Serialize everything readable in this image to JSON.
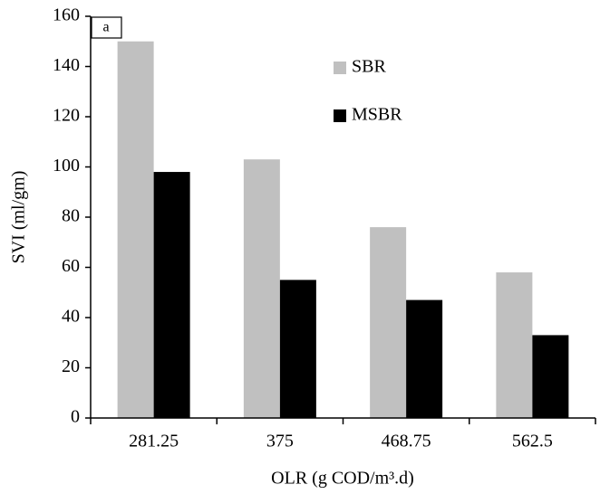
{
  "chart_data": {
    "type": "bar",
    "annotation": "a",
    "x_label": "OLR (g COD/m³.d)",
    "y_label": "SVI (ml/gm)",
    "categories": [
      "281.25",
      "375",
      "468.75",
      "562.5"
    ],
    "series": [
      {
        "name": "SBR",
        "color": "#c0c0c0",
        "values": [
          150,
          103,
          76,
          58
        ]
      },
      {
        "name": "MSBR",
        "color": "#000000",
        "values": [
          98,
          55,
          47,
          33
        ]
      }
    ],
    "ylim": [
      0,
      160
    ],
    "yticks": [
      0,
      20,
      40,
      60,
      80,
      100,
      120,
      140,
      160
    ],
    "grid": false
  }
}
